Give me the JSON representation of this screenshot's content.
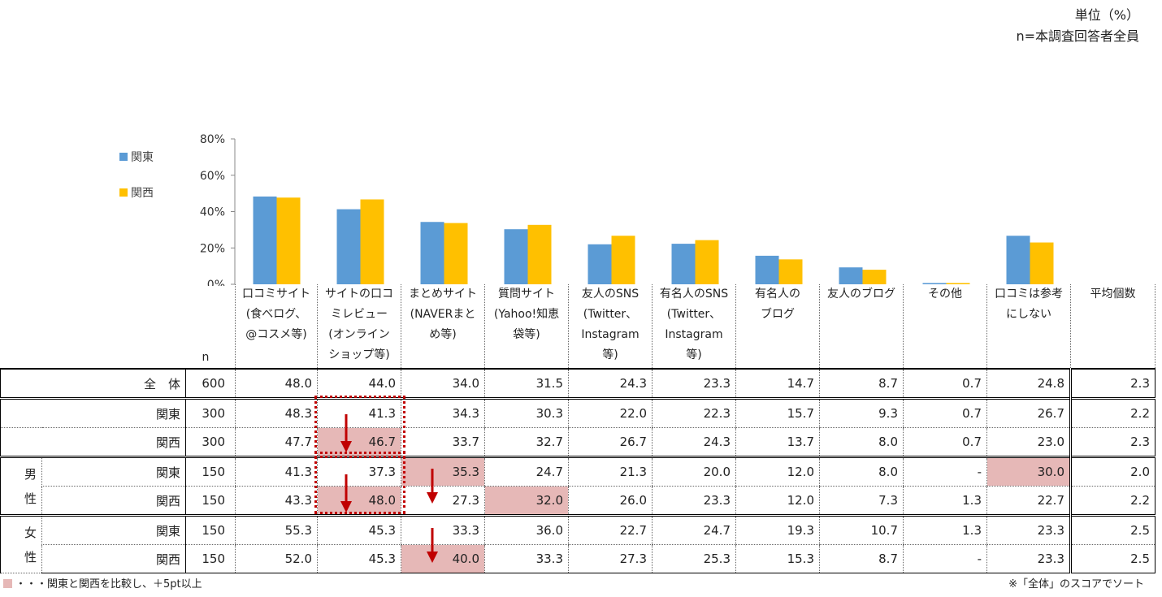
{
  "unit_line1": "単位（%）",
  "unit_line2": "n=本調査回答者全員",
  "chart_data": {
    "type": "bar",
    "ylim": [
      0,
      80
    ],
    "yticks": [
      "80%",
      "60%",
      "40%",
      "20%",
      "0%"
    ],
    "legend_position": "top-left",
    "series": [
      {
        "name": "関東",
        "color": "#5b9bd5",
        "values": [
          48.3,
          41.3,
          34.3,
          30.3,
          22.0,
          22.3,
          15.7,
          9.3,
          0.7,
          26.7
        ]
      },
      {
        "name": "関西",
        "color": "#ffc000",
        "values": [
          47.7,
          46.7,
          33.7,
          32.7,
          26.7,
          24.3,
          13.7,
          8.0,
          0.7,
          23.0
        ]
      }
    ]
  },
  "table": {
    "n_header": "n",
    "columns": [
      [
        "口コミサイト",
        "(食べログ、",
        "@コスメ等)"
      ],
      [
        "サイトの口コ",
        "ミレビュー",
        "(オンライン",
        "ショップ等)"
      ],
      [
        "まとめサイト",
        "(NAVERまと",
        "め等)"
      ],
      [
        "質問サイト",
        "(Yahoo!知恵",
        "袋等)"
      ],
      [
        "友人のSNS",
        "(Twitter、",
        "Instagram",
        "等)"
      ],
      [
        "有名人のSNS",
        "(Twitter、",
        "Instagram",
        "等)"
      ],
      [
        "有名人の",
        "ブログ"
      ],
      [
        "友人のブログ"
      ],
      [
        "その他"
      ],
      [
        "口コミは参考",
        "にしない"
      ],
      [
        "平均個数"
      ]
    ],
    "total": {
      "label": "全　体",
      "n": "600",
      "values": [
        "48.0",
        "44.0",
        "34.0",
        "31.5",
        "24.3",
        "23.3",
        "14.7",
        "8.7",
        "0.7",
        "24.8",
        "2.3"
      ]
    },
    "region": [
      {
        "label": "関東",
        "n": "300",
        "values": [
          "48.3",
          "41.3",
          "34.3",
          "30.3",
          "22.0",
          "22.3",
          "15.7",
          "9.3",
          "0.7",
          "26.7",
          "2.2"
        ]
      },
      {
        "label": "関西",
        "n": "300",
        "values": [
          "47.7",
          "46.7",
          "33.7",
          "32.7",
          "26.7",
          "24.3",
          "13.7",
          "8.0",
          "0.7",
          "23.0",
          "2.3"
        ]
      }
    ],
    "gender_groups": [
      {
        "label": "男性",
        "rows": [
          {
            "label": "関東",
            "n": "150",
            "values": [
              "41.3",
              "37.3",
              "35.3",
              "24.7",
              "21.3",
              "20.0",
              "12.0",
              "8.0",
              "-",
              "30.0",
              "2.0"
            ]
          },
          {
            "label": "関西",
            "n": "150",
            "values": [
              "43.3",
              "48.0",
              "27.3",
              "32.0",
              "26.0",
              "23.3",
              "12.0",
              "7.3",
              "1.3",
              "22.7",
              "2.2"
            ]
          }
        ]
      },
      {
        "label": "女性",
        "rows": [
          {
            "label": "関東",
            "n": "150",
            "values": [
              "55.3",
              "45.3",
              "33.3",
              "36.0",
              "22.7",
              "24.7",
              "19.3",
              "10.7",
              "1.3",
              "23.3",
              "2.5"
            ]
          },
          {
            "label": "関西",
            "n": "150",
            "values": [
              "52.0",
              "45.3",
              "40.0",
              "33.3",
              "27.3",
              "25.3",
              "15.3",
              "8.7",
              "-",
              "23.3",
              "2.5"
            ]
          }
        ]
      }
    ]
  },
  "footnote_left": "・・・関東と関西を比較し、＋5pt以上",
  "footnote_right": "※「全体」のスコアでソート",
  "highlight_color": "#e6b8b7",
  "arrow_color": "#c00000"
}
